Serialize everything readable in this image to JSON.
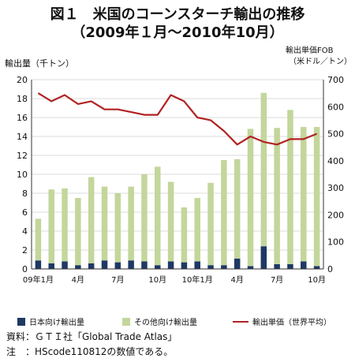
{
  "title_line1": "図１　米国のコーンスターチ輸出の推移",
  "title_line2": "（2009年１月～2010年10月）",
  "notes": [
    "資料：ＧＴＩ社「Global Trade Atlas」",
    "注　：HScode110812の数値である。"
  ],
  "colors": {
    "japan_bar": "#1f3864",
    "other_bar": "#c3d69b",
    "price_line": "#b22222"
  },
  "chart_data": {
    "type": "bar+line",
    "categories": [
      "09年1月",
      "2",
      "3",
      "4",
      "5",
      "6",
      "7",
      "8",
      "9",
      "10",
      "11",
      "12",
      "10年1月",
      "2",
      "3",
      "4",
      "5",
      "6",
      "7",
      "8",
      "9",
      "10"
    ],
    "x_tick_labels": [
      "09年1月",
      "",
      "",
      "4月",
      "",
      "",
      "7月",
      "",
      "",
      "10月",
      "",
      "",
      "10年1月",
      "",
      "",
      "4月",
      "",
      "",
      "7月",
      "",
      "",
      "10月"
    ],
    "y_left": {
      "label": "輸出量（千トン）",
      "min": 0,
      "max": 20,
      "step": 2
    },
    "y_right": {
      "label_line1": "輸出単価FOB",
      "label_line2": "（米ドル／トン）",
      "min": 0,
      "max": 700,
      "step": 100
    },
    "grid": true,
    "legend_position": "bottom",
    "series": [
      {
        "name": "日本向け輸出量",
        "type": "bar-stacked",
        "axis": "left",
        "values": [
          0.9,
          0.6,
          0.8,
          0.4,
          0.6,
          0.9,
          0.7,
          0.9,
          0.8,
          0.4,
          0.8,
          0.7,
          0.8,
          0.4,
          0.4,
          1.1,
          0.3,
          2.4,
          0.5,
          0.5,
          0.8,
          0.3
        ]
      },
      {
        "name": "その他向け輸出量",
        "type": "bar-stacked",
        "axis": "left",
        "values": [
          4.4,
          7.8,
          7.7,
          7.1,
          9.1,
          7.8,
          7.3,
          7.8,
          9.2,
          10.4,
          8.4,
          5.8,
          6.7,
          8.7,
          11.1,
          10.5,
          14.5,
          16.2,
          14.4,
          16.3,
          14.2,
          14.7
        ]
      },
      {
        "name": "輸出単価（世界平均）",
        "type": "line",
        "axis": "right",
        "values": [
          650,
          620,
          643,
          610,
          620,
          590,
          590,
          580,
          570,
          570,
          643,
          620,
          560,
          550,
          510,
          460,
          490,
          470,
          460,
          480,
          480,
          500
        ]
      }
    ]
  }
}
